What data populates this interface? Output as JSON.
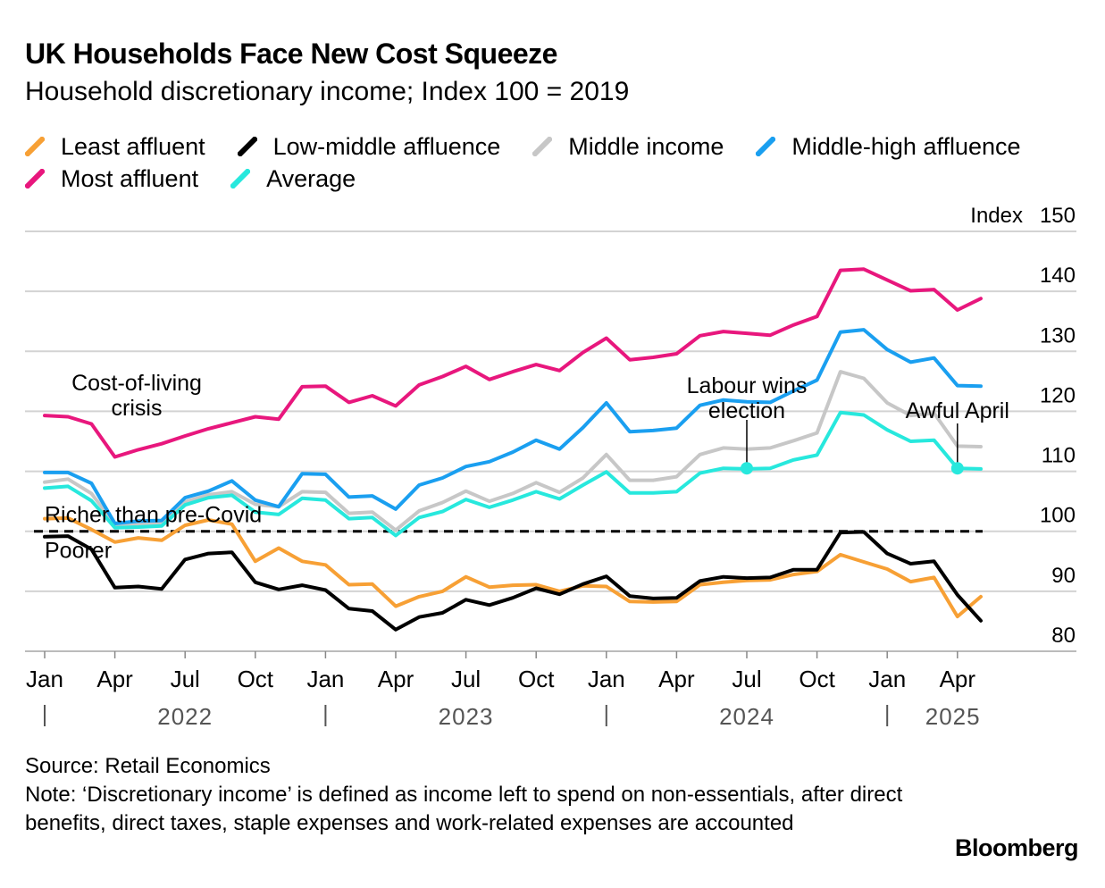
{
  "title": "UK Households Face New Cost Squeeze",
  "subtitle": "Household discretionary income; Index 100 = 2019",
  "source": "Source: Retail Economics",
  "note": "Note: ‘Discretionary income’ is defined as income left to spend on non-essentials, after direct benefits, direct taxes, staple expenses and work-related expenses are accounted",
  "brand": "Bloomberg",
  "chart_data": {
    "type": "line",
    "y_axis_title": "Index",
    "ylim": [
      75,
      150
    ],
    "y_ticks": [
      80,
      90,
      100,
      110,
      120,
      130,
      140,
      150
    ],
    "grid": true,
    "x_start": "2022-01",
    "x": [
      "2022-01",
      "2022-02",
      "2022-03",
      "2022-04",
      "2022-05",
      "2022-06",
      "2022-07",
      "2022-08",
      "2022-09",
      "2022-10",
      "2022-11",
      "2022-12",
      "2023-01",
      "2023-02",
      "2023-03",
      "2023-04",
      "2023-05",
      "2023-06",
      "2023-07",
      "2023-08",
      "2023-09",
      "2023-10",
      "2023-11",
      "2023-12",
      "2024-01",
      "2024-02",
      "2024-03",
      "2024-04",
      "2024-05",
      "2024-06",
      "2024-07",
      "2024-08",
      "2024-09",
      "2024-10",
      "2024-11",
      "2024-12",
      "2025-01",
      "2025-02",
      "2025-03",
      "2025-04",
      "2025-05"
    ],
    "x_tick_labels": [
      {
        "label": "Jan",
        "x": 0
      },
      {
        "label": "Apr",
        "x": 3
      },
      {
        "label": "Jul",
        "x": 6
      },
      {
        "label": "Oct",
        "x": 9
      },
      {
        "label": "Jan",
        "x": 12
      },
      {
        "label": "Apr",
        "x": 15
      },
      {
        "label": "Jul",
        "x": 18
      },
      {
        "label": "Oct",
        "x": 21
      },
      {
        "label": "Jan",
        "x": 24
      },
      {
        "label": "Apr",
        "x": 27
      },
      {
        "label": "Jul",
        "x": 30
      },
      {
        "label": "Oct",
        "x": 33
      },
      {
        "label": "Jan",
        "x": 36
      },
      {
        "label": "Apr",
        "x": 39
      }
    ],
    "year_labels": [
      {
        "label": "2022",
        "x": 6
      },
      {
        "label": "2023",
        "x": 18
      },
      {
        "label": "2024",
        "x": 30
      },
      {
        "label": "2025",
        "x": 38.5
      }
    ],
    "year_separators": [
      0,
      12,
      24,
      36
    ],
    "series": [
      {
        "name": "Most affluent",
        "color": "#e8177d",
        "values": [
          119.3,
          119.1,
          117.9,
          112.4,
          113.6,
          114.6,
          115.9,
          117.1,
          118.1,
          119.1,
          118.7,
          124.1,
          124.2,
          121.5,
          122.6,
          120.9,
          124.4,
          125.8,
          127.5,
          125.3,
          126.6,
          127.8,
          126.8,
          129.8,
          132.2,
          128.6,
          129.0,
          129.6,
          132.6,
          133.3,
          133.0,
          132.7,
          134.4,
          135.8,
          143.5,
          143.7,
          141.9,
          140.1,
          140.3,
          136.9,
          138.8
        ]
      },
      {
        "name": "Middle-high affluence",
        "color": "#1a9ff0",
        "values": [
          109.8,
          109.8,
          108.0,
          101.3,
          101.7,
          101.8,
          105.6,
          106.7,
          108.4,
          105.2,
          104.1,
          109.6,
          109.5,
          105.7,
          105.9,
          103.7,
          107.7,
          108.9,
          110.8,
          111.6,
          113.2,
          115.2,
          113.7,
          117.3,
          121.4,
          116.6,
          116.8,
          117.2,
          121.0,
          121.9,
          121.6,
          121.5,
          123.4,
          125.2,
          133.2,
          133.6,
          130.3,
          128.2,
          128.9,
          124.3,
          124.2
        ]
      },
      {
        "name": "Middle income",
        "color": "#c7c7c7",
        "values": [
          108.2,
          108.7,
          106.3,
          101.1,
          101.2,
          101.4,
          104.9,
          106.1,
          106.6,
          104.5,
          104.1,
          106.6,
          106.5,
          103.0,
          103.2,
          100.2,
          103.4,
          104.8,
          106.7,
          105.0,
          106.3,
          108.1,
          106.5,
          108.9,
          112.8,
          108.5,
          108.5,
          109.1,
          112.8,
          113.9,
          113.7,
          113.9,
          115.1,
          116.4,
          126.6,
          125.5,
          121.4,
          119.3,
          119.7,
          114.2,
          114.1
        ]
      },
      {
        "name": "Average",
        "color": "#27e8dd",
        "values": [
          107.2,
          107.5,
          105.1,
          100.6,
          100.7,
          100.9,
          104.4,
          105.6,
          106.0,
          103.2,
          102.8,
          105.5,
          105.2,
          102.1,
          102.3,
          99.3,
          102.3,
          103.3,
          105.3,
          104.0,
          105.2,
          106.6,
          105.4,
          107.7,
          109.9,
          106.4,
          106.4,
          106.6,
          109.7,
          110.5,
          110.4,
          110.5,
          111.9,
          112.7,
          119.8,
          119.4,
          116.9,
          115.0,
          115.2,
          110.5,
          110.4
        ]
      },
      {
        "name": "Least affluent",
        "color": "#f7a035",
        "values": [
          102.1,
          102.2,
          100.3,
          98.2,
          98.9,
          98.5,
          101.0,
          101.9,
          101.2,
          95.0,
          97.2,
          95.0,
          94.4,
          91.1,
          91.2,
          87.5,
          89.1,
          90.0,
          92.4,
          90.7,
          91.0,
          91.1,
          90.0,
          90.9,
          90.8,
          88.3,
          88.2,
          88.3,
          91.1,
          91.5,
          91.8,
          91.9,
          92.8,
          93.3,
          96.1,
          94.9,
          93.7,
          91.6,
          92.3,
          85.8,
          89.1
        ]
      },
      {
        "name": "Low-middle affluence",
        "color": "#000000",
        "values": [
          99.1,
          99.2,
          97.0,
          90.6,
          90.8,
          90.4,
          95.3,
          96.3,
          96.5,
          91.5,
          90.3,
          91.0,
          90.2,
          87.1,
          86.7,
          83.6,
          85.7,
          86.4,
          88.6,
          87.7,
          88.9,
          90.5,
          89.5,
          91.2,
          92.5,
          89.2,
          88.8,
          88.9,
          91.7,
          92.4,
          92.2,
          92.3,
          93.6,
          93.6,
          99.8,
          99.9,
          96.3,
          94.6,
          95.0,
          89.4,
          85.1
        ]
      }
    ],
    "legend": [
      "Least affluent",
      "Low-middle affluence",
      "Middle income",
      "Middle-high affluence",
      "Most affluent",
      "Average"
    ],
    "legend_position": "top",
    "reference_line": {
      "y": 100,
      "style": "dashed",
      "label_above": "Richer than pre-Covid",
      "label_below": "Poorer"
    },
    "annotations": [
      {
        "text": [
          "Cost-of-living",
          "crisis"
        ],
        "x": 3.3,
        "y": 121
      },
      {
        "text": [
          "Labour wins",
          "election"
        ],
        "x": 30,
        "y": 110.5,
        "series": "Average"
      },
      {
        "text": [
          "Awful April"
        ],
        "x": 39,
        "y": 110.5,
        "series": "Average"
      }
    ]
  }
}
